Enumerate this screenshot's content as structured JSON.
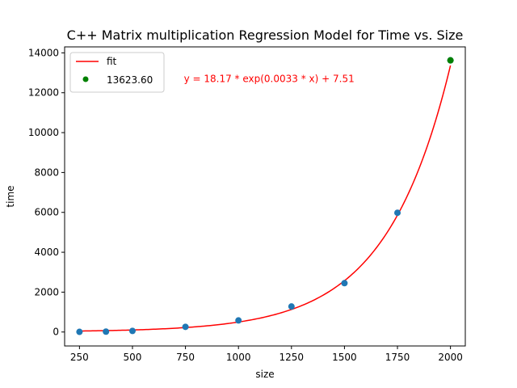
{
  "chart_data": {
    "type": "scatter",
    "title": "C++ Matrix multiplication Regression Model for Time vs. Size",
    "xlabel": "size",
    "ylabel": "time",
    "xlim": [
      180,
      2070
    ],
    "ylim": [
      -700,
      14300
    ],
    "xticks": [
      250,
      500,
      750,
      1000,
      1250,
      1500,
      1750,
      2000
    ],
    "yticks": [
      0,
      2000,
      4000,
      6000,
      8000,
      10000,
      12000,
      14000
    ],
    "grid": false,
    "legend_position": "top-left",
    "annotation": {
      "text": "y = 18.17 * exp(0.0033 * x) + 7.51",
      "color": "#ff0000",
      "anchor": [
        750,
        12700
      ]
    },
    "fit": {
      "label": "fit",
      "color": "#ff0000",
      "a": 18.17,
      "b": 0.0033,
      "c": 7.51,
      "x_range": [
        250,
        2000
      ]
    },
    "series": [
      {
        "color": "#1f77b4",
        "x": [
          250,
          375,
          500,
          750,
          1000,
          1250,
          1500,
          1750,
          2000
        ],
        "y": [
          8,
          20,
          55,
          260,
          580,
          1280,
          2450,
          5980,
          13623.6
        ]
      },
      {
        "name": "13623.60",
        "color": "#008000",
        "x": [
          2000
        ],
        "y": [
          13623.6
        ]
      }
    ]
  }
}
